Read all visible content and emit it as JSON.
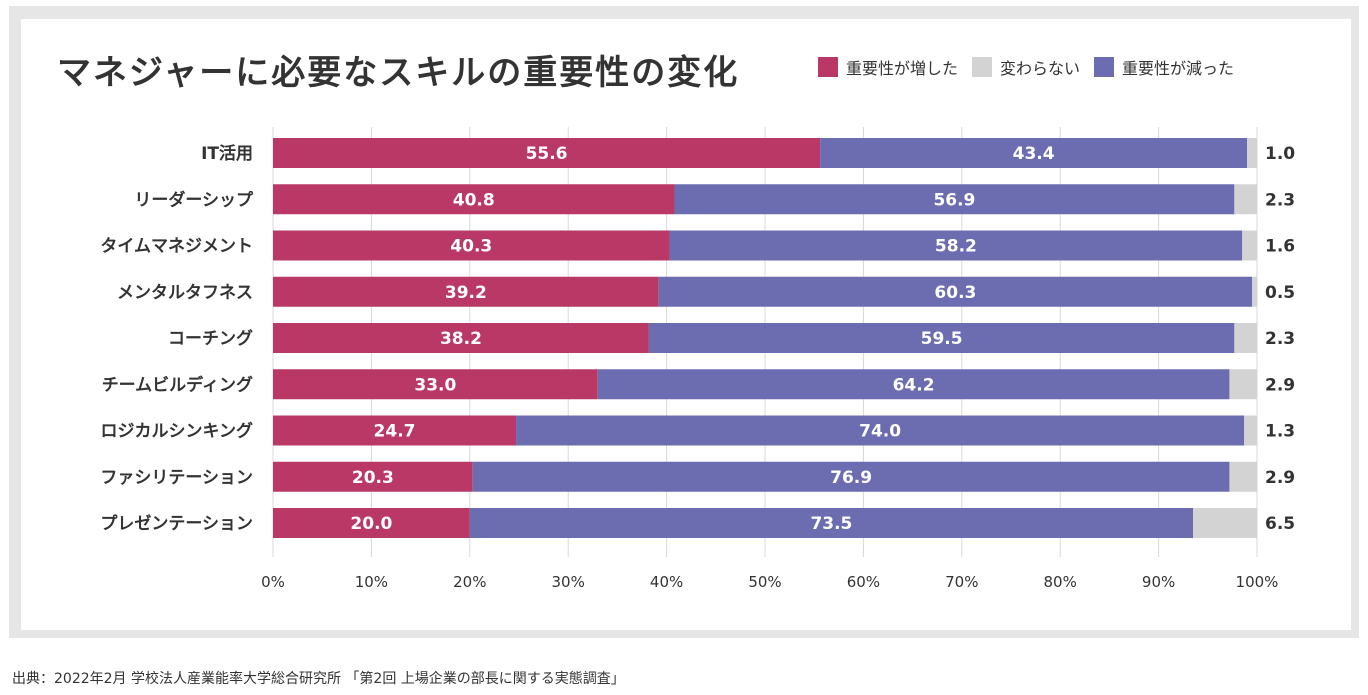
{
  "chart_data": {
    "type": "bar",
    "orientation": "horizontal",
    "stacked": true,
    "title": "マネジャーに必要なスキルの重要性の変化",
    "categories": [
      "IT活用",
      "リーダーシップ",
      "タイムマネジメント",
      "メンタルタフネス",
      "コーチング",
      "チームビルディング",
      "ロジカルシンキング",
      "ファシリテーション",
      "プレゼンテーション"
    ],
    "series": [
      {
        "name": "重要性が増した",
        "color": "#b93866",
        "values": [
          55.6,
          40.8,
          40.3,
          39.2,
          38.2,
          33.0,
          24.7,
          20.3,
          20.0
        ],
        "labels": [
          "55.6",
          "40.8",
          "40.3",
          "39.2",
          "38.2",
          "33.0",
          "24.7",
          "20.3",
          "20.0"
        ]
      },
      {
        "name": "重要性が減った",
        "color": "#6b6db0",
        "values": [
          43.4,
          56.9,
          58.2,
          60.3,
          59.5,
          64.2,
          74.0,
          76.9,
          73.5
        ],
        "labels": [
          "43.4",
          "56.9",
          "58.2",
          "60.3",
          "59.5",
          "64.2",
          "74.0",
          "76.9",
          "73.5"
        ]
      },
      {
        "name": "変わらない",
        "color": "#d3d3d3",
        "values": [
          1.0,
          2.3,
          1.6,
          0.5,
          2.3,
          2.9,
          1.3,
          2.9,
          6.5
        ],
        "labels": [
          "1.0",
          "2.3",
          "1.6",
          "0.5",
          "2.3",
          "2.9",
          "1.3",
          "2.9",
          "6.5"
        ]
      }
    ],
    "legend": {
      "position": "top-right",
      "items": [
        {
          "label": "重要性が増した",
          "color": "#b93866"
        },
        {
          "label": "変わらない",
          "color": "#d3d3d3"
        },
        {
          "label": "重要性が減った",
          "color": "#6b6db0"
        }
      ]
    },
    "x_ticks": [
      "0%",
      "10%",
      "20%",
      "30%",
      "40%",
      "50%",
      "60%",
      "70%",
      "80%",
      "90%",
      "100%"
    ],
    "xlim": [
      0,
      100
    ],
    "grid": true,
    "xlabel": "",
    "ylabel": ""
  },
  "footer": {
    "source": "出典：2022年2月 学校法人産業能率大学総合研究所 「第2回 上場企業の部長に関する実態調査」"
  }
}
